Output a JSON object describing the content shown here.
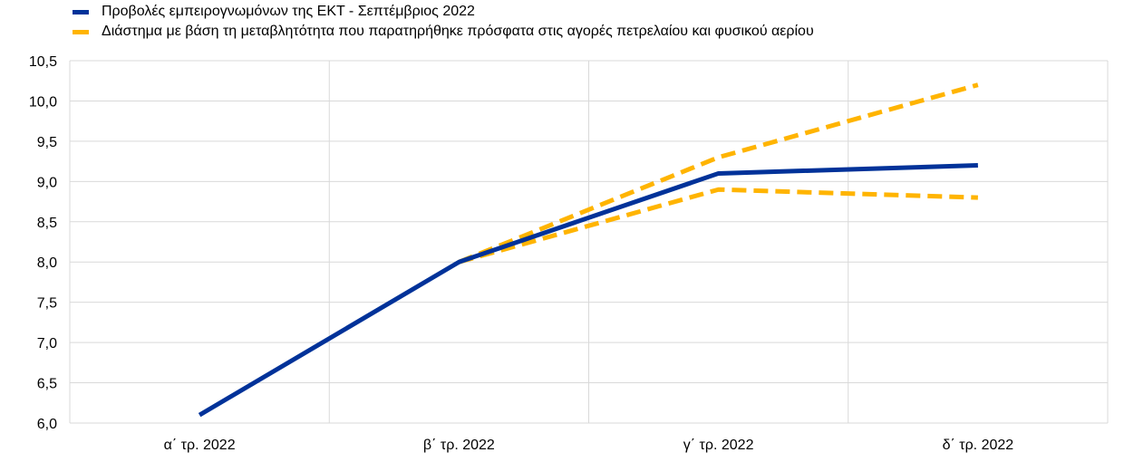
{
  "chart_data": {
    "type": "line",
    "categories": [
      "α΄ τρ. 2022",
      "β΄ τρ. 2022",
      "γ΄ τρ. 2022",
      "δ΄ τρ. 2022"
    ],
    "ylim": [
      6.0,
      10.5
    ],
    "yticks": [
      "6,0",
      "6,5",
      "7,0",
      "7,5",
      "8,0",
      "8,5",
      "9,0",
      "9,5",
      "10,0",
      "10,5"
    ],
    "ytick_values": [
      6.0,
      6.5,
      7.0,
      7.5,
      8.0,
      8.5,
      9.0,
      9.5,
      10.0,
      10.5
    ],
    "grid": true,
    "legend_placement": "top-left",
    "series": [
      {
        "name": "Προβολές εμπειρογνωμόνων της ΕΚΤ - Σεπτέμβριος 2022",
        "values": [
          6.1,
          8.0,
          9.1,
          9.2
        ],
        "color": "#003299",
        "style": "solid"
      },
      {
        "name": "Διάστημα με βάση τη μεταβλητότητα που παρατηρήθηκε πρόσφατα στις αγορές πετρελαίου και φυσικού αερίου",
        "values": [
          null,
          8.0,
          9.3,
          10.2
        ],
        "color": "#FFB400",
        "style": "dashed"
      },
      {
        "values": [
          null,
          8.0,
          8.9,
          8.8
        ],
        "color": "#FFB400",
        "style": "dashed"
      }
    ]
  }
}
